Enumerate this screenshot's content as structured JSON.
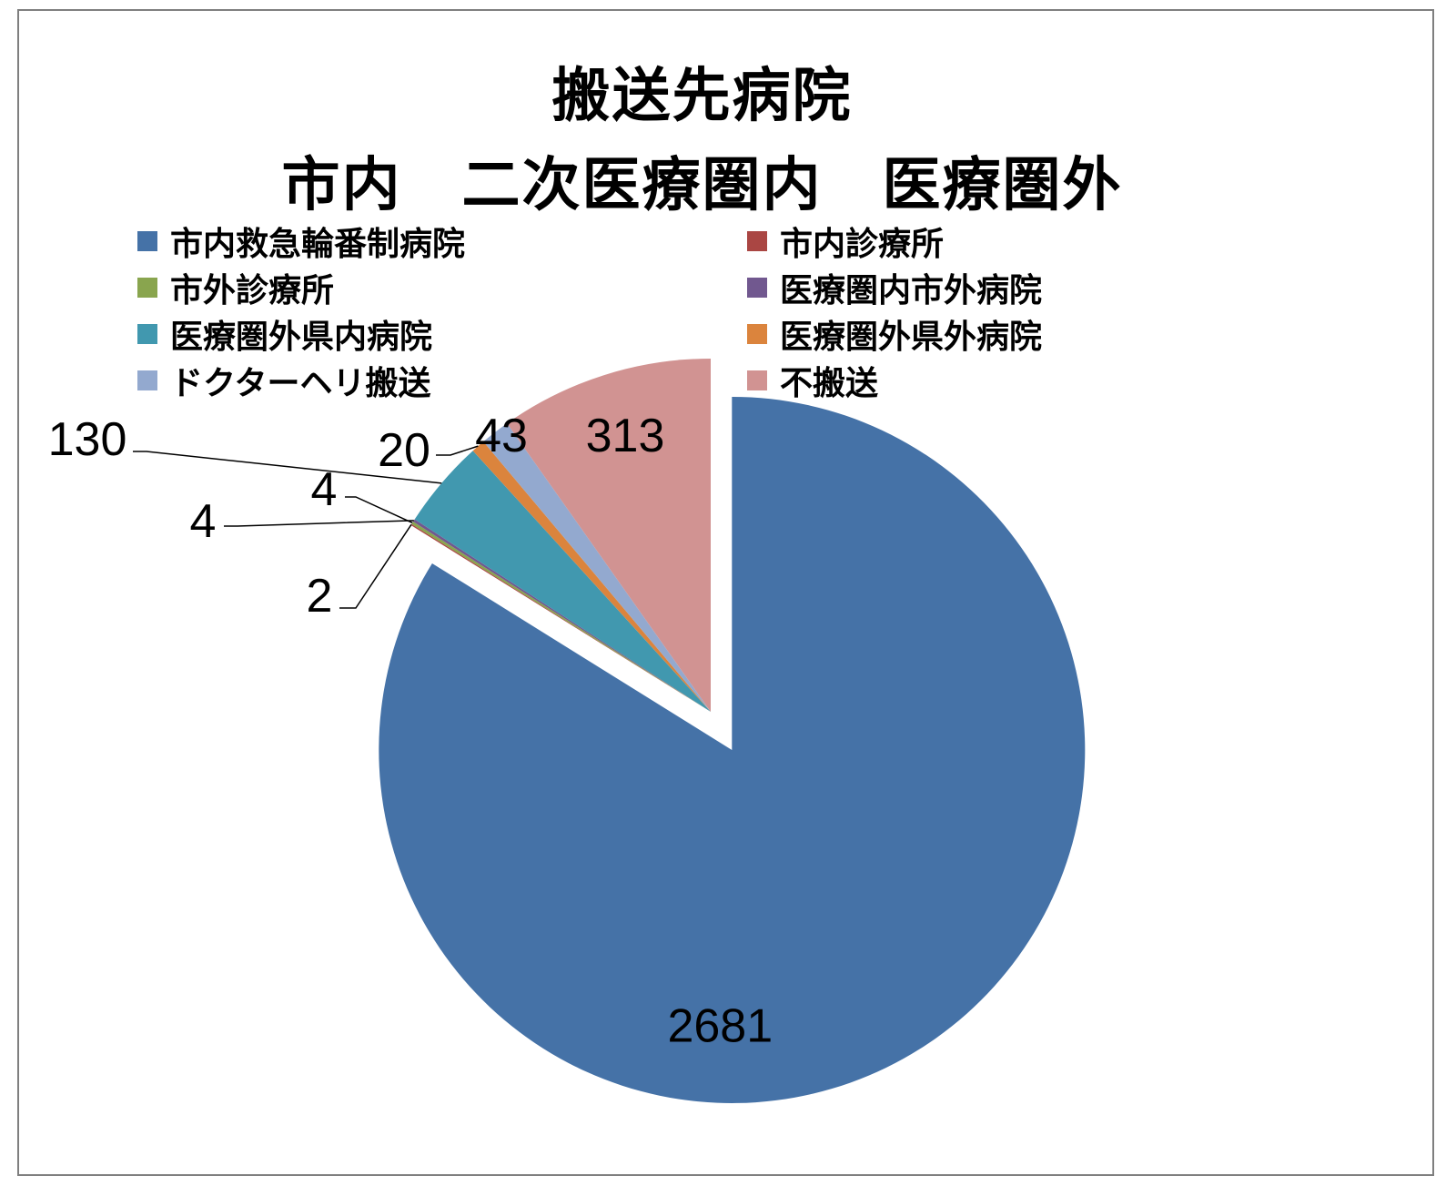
{
  "chart_data": {
    "type": "pie",
    "title": "搬送先病院",
    "subtitle": "市内　二次医療圏内　医療圏外",
    "legend_position": "top",
    "slices": [
      {
        "name": "市内救急輪番制病院",
        "value": 2681,
        "color": "#4572a7",
        "exploded": true
      },
      {
        "name": "市内診療所",
        "value": 2,
        "color": "#aa4643",
        "exploded": false
      },
      {
        "name": "市外診療所",
        "value": 4,
        "color": "#89a54e",
        "exploded": false
      },
      {
        "name": "医療圏内市外病院",
        "value": 4,
        "color": "#71588f",
        "exploded": false
      },
      {
        "name": "医療圏外県内病院",
        "value": 130,
        "color": "#4198af",
        "exploded": false
      },
      {
        "name": "医療圏外県外病院",
        "value": 20,
        "color": "#db843d",
        "exploded": false
      },
      {
        "name": "ドクターヘリ搬送",
        "value": 43,
        "color": "#93a9cf",
        "exploded": false
      },
      {
        "name": "不搬送",
        "value": 313,
        "color": "#d19392",
        "exploded": false
      }
    ],
    "data_labels": [
      "2681",
      "2",
      "4",
      "4",
      "130",
      "20",
      "43",
      "313"
    ]
  }
}
